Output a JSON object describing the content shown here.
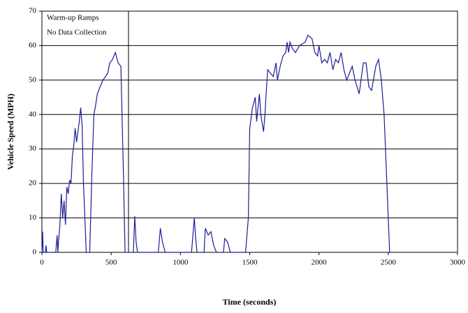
{
  "chart_data": {
    "type": "line",
    "xlabel": "Time (seconds)",
    "ylabel": "Vehicle Speed (MPH)",
    "annotations": [
      "Warm-up Ramps",
      "No Data Collection"
    ],
    "vline": 625,
    "color": "#1c1c96",
    "grid": true,
    "xlim": [
      0,
      3000
    ],
    "xticks": [
      0,
      500,
      1000,
      1500,
      2000,
      2500,
      3000
    ],
    "ylim": [
      0,
      70
    ],
    "yticks": [
      0,
      10,
      20,
      30,
      40,
      50,
      60,
      70
    ],
    "x": [
      0,
      5,
      10,
      25,
      30,
      35,
      100,
      110,
      115,
      120,
      130,
      140,
      150,
      160,
      170,
      180,
      190,
      200,
      210,
      220,
      230,
      240,
      250,
      260,
      270,
      280,
      290,
      300,
      320,
      345,
      360,
      375,
      385,
      400,
      420,
      440,
      460,
      475,
      490,
      510,
      530,
      550,
      570,
      590,
      600,
      660,
      670,
      680,
      690,
      840,
      855,
      870,
      890,
      1080,
      1100,
      1110,
      1120,
      1170,
      1180,
      1200,
      1220,
      1240,
      1260,
      1310,
      1320,
      1340,
      1360,
      1470,
      1490,
      1500,
      1520,
      1540,
      1550,
      1570,
      1580,
      1600,
      1610,
      1620,
      1630,
      1650,
      1670,
      1690,
      1700,
      1720,
      1740,
      1760,
      1770,
      1780,
      1790,
      1810,
      1830,
      1860,
      1900,
      1920,
      1950,
      1970,
      1990,
      2000,
      2020,
      2040,
      2060,
      2080,
      2100,
      2120,
      2140,
      2160,
      2180,
      2200,
      2220,
      2240,
      2260,
      2290,
      2300,
      2320,
      2340,
      2360,
      2380,
      2410,
      2430,
      2450,
      2470,
      2490,
      2510,
      2530
    ],
    "series": [
      {
        "values": [
          0,
          6,
          0,
          0,
          2,
          0,
          0,
          5,
          0,
          3,
          8,
          17,
          10,
          15,
          8,
          19,
          17,
          21,
          20,
          28,
          31,
          36,
          32,
          35,
          38,
          42,
          37,
          20,
          0,
          0,
          22,
          40,
          42,
          46,
          48,
          50,
          51,
          52,
          55,
          56,
          58,
          55,
          54,
          20,
          0,
          0,
          10.5,
          3,
          0,
          0,
          7,
          3,
          0,
          0,
          10,
          4,
          0,
          0,
          7,
          5,
          6,
          2,
          0,
          0,
          4,
          3,
          0,
          0,
          10,
          36,
          42,
          45,
          38,
          46,
          40,
          35,
          40,
          47,
          53,
          52,
          51,
          55,
          50,
          54,
          57,
          58,
          61,
          58,
          61,
          59,
          58,
          60,
          61,
          63,
          62,
          58,
          57,
          60,
          55,
          56,
          55,
          58,
          53,
          56,
          55,
          58,
          53,
          50,
          52,
          54,
          50,
          46,
          49,
          55,
          55,
          48,
          47,
          54,
          56,
          50,
          40,
          20,
          0,
          0
        ]
      }
    ]
  }
}
